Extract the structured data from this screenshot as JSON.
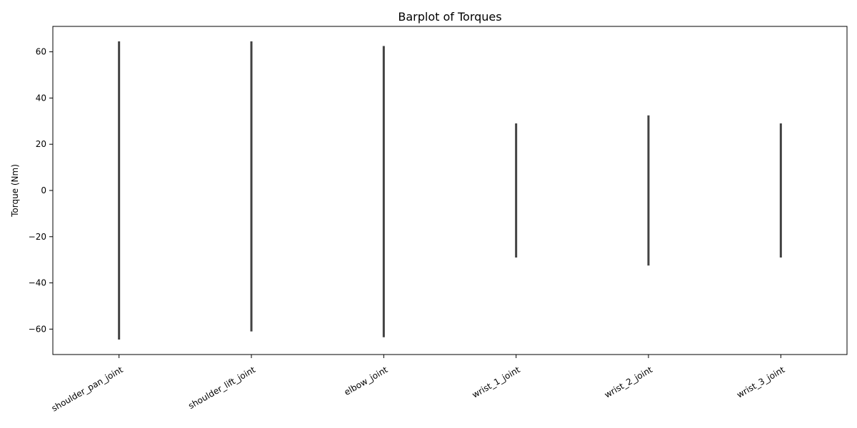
{
  "chart_data": {
    "type": "bar",
    "title": "Barplot of Torques",
    "xlabel": "",
    "ylabel": "Torque (Nm)",
    "ylim": [
      -71,
      71
    ],
    "yticks": [
      -60,
      -40,
      -20,
      0,
      20,
      40,
      60
    ],
    "ytick_labels": [
      "−60",
      "−40",
      "−20",
      "0",
      "20",
      "40",
      "60"
    ],
    "categories": [
      "shoulder_pan_joint",
      "shoulder_lift_joint",
      "elbow_joint",
      "wrist_1_joint",
      "wrist_2_joint",
      "wrist_3_joint"
    ],
    "values": [
      0,
      0,
      0,
      0,
      0,
      0
    ],
    "error_low": [
      -64.5,
      -61,
      -63.5,
      -29,
      -32.5,
      -29
    ],
    "error_high": [
      64.5,
      64.5,
      62.5,
      29,
      32.5,
      29
    ],
    "grid": false,
    "legend": "none",
    "colors": {
      "errorbar": "#424242",
      "axes": "#000000"
    }
  }
}
